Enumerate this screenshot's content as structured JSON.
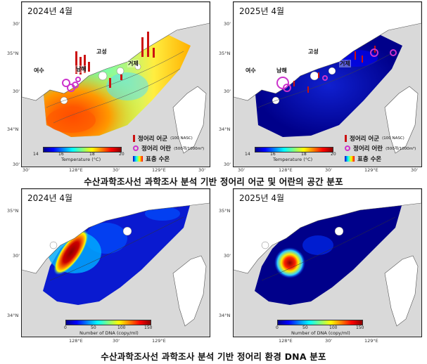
{
  "panels": {
    "p1": {
      "year": "2024년 4월"
    },
    "p2": {
      "year": "2025년 4월"
    },
    "p3": {
      "year": "2024년 4월"
    },
    "p4": {
      "year": "2025년 4월"
    }
  },
  "places": {
    "yeosu": "여수",
    "namhae": "남해",
    "goseong": "고성",
    "geoje": "거제"
  },
  "lat_ticks": {
    "a": "30'",
    "b": "35°N",
    "c": "30'",
    "d": "34°N",
    "e": "30'"
  },
  "lon_ticks": {
    "a": "30'",
    "b": "128°E",
    "c": "30'",
    "d": "129°E",
    "e": "30'"
  },
  "legend": {
    "school": "정어리 어군",
    "school_unit": "(100 NASC)",
    "larva": "정어리 어란",
    "larva_unit": "(500개/1000m³)",
    "surface_temp": "표층 수온"
  },
  "temp_colorbar": {
    "ticks": [
      "14",
      "16",
      "18",
      "20"
    ],
    "label": "Temperature (°C)",
    "range": [
      14,
      20
    ]
  },
  "dna_colorbar": {
    "ticks": [
      "0",
      "50",
      "100",
      "150"
    ],
    "label": "Number of DNA (copy/ml)",
    "range": [
      0,
      150
    ]
  },
  "captions": {
    "top": "수산과학조사선 과학조사 분석 기반 정어리 어군 및 어란의 공간 분포",
    "bottom": "수산과학조사선 과학조사 분석 기반 정어리 환경 DNA 분포"
  },
  "colors": {
    "school": "#cc1111",
    "larva": "#cc33cc",
    "land": "#ffffff",
    "sea_background": "#d9d9d9"
  }
}
